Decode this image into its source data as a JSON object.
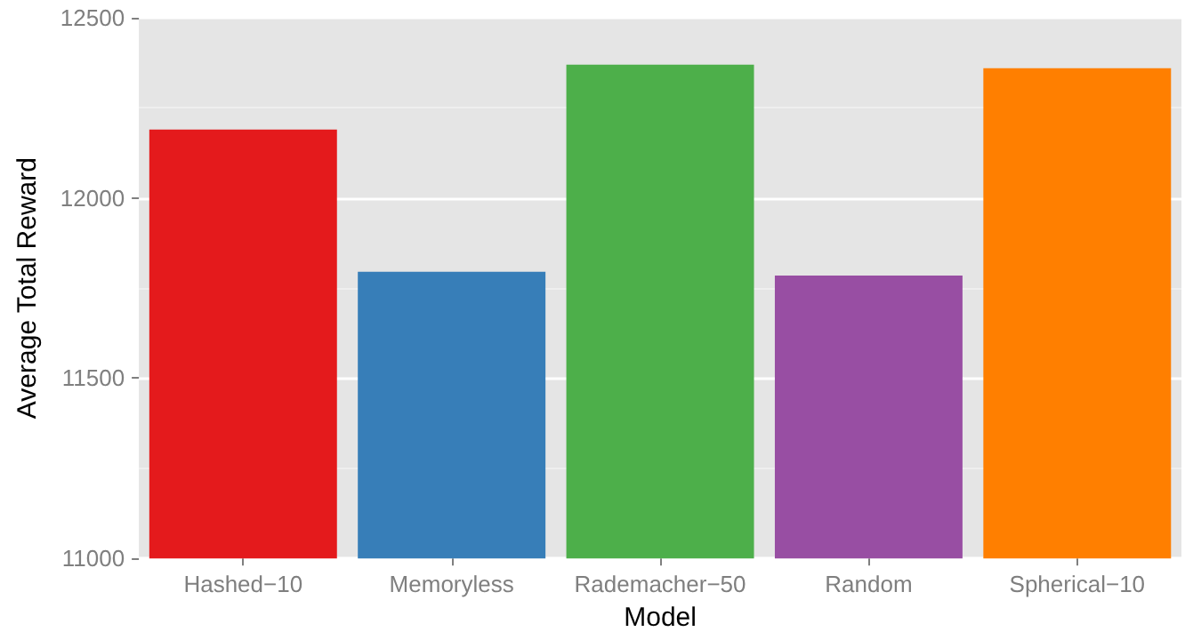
{
  "chart_data": {
    "type": "bar",
    "xlabel": "Model",
    "ylabel": "Average Total Reward",
    "categories": [
      "Hashed−10",
      "Memoryless",
      "Rademacher−50",
      "Random",
      "Spherical−10"
    ],
    "values": [
      12190,
      11795,
      12370,
      11785,
      12360
    ],
    "colors": [
      "#e41a1c",
      "#377eb8",
      "#4daf4a",
      "#984ea3",
      "#ff7f00"
    ],
    "ylim": [
      11000,
      12500
    ],
    "yticks": [
      11000,
      11500,
      12000,
      12500
    ],
    "grid": "y"
  }
}
